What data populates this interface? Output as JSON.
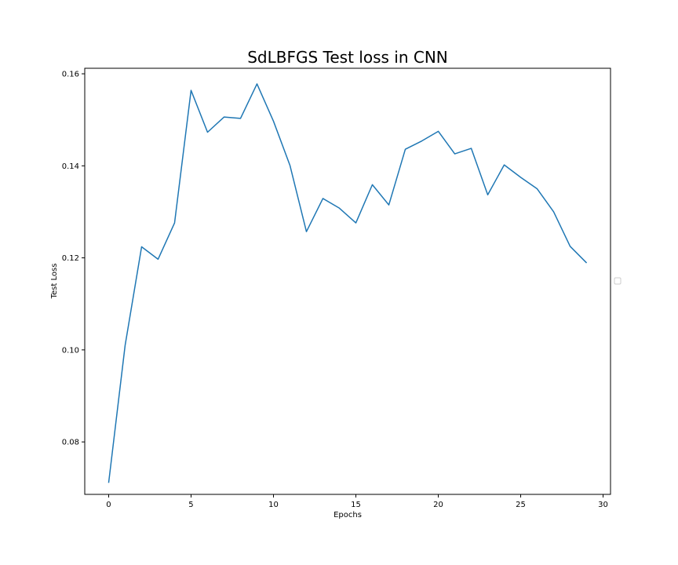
{
  "chart_data": {
    "type": "line",
    "title": "SdLBFGS Test loss in CNN",
    "xlabel": "Epochs",
    "ylabel": "Test Loss",
    "xlim": [
      -1.45,
      30.45
    ],
    "ylim": [
      0.0686,
      0.1612
    ],
    "xticks": [
      0,
      5,
      10,
      15,
      20,
      25,
      30
    ],
    "yticks": [
      0.08,
      0.1,
      0.12,
      0.14,
      0.16
    ],
    "xtick_labels": [
      "0",
      "5",
      "10",
      "15",
      "20",
      "25",
      "30"
    ],
    "ytick_labels": [
      "0.08",
      "0.10",
      "0.12",
      "0.14",
      "0.16"
    ],
    "grid": false,
    "legend": "empty box, center-right outside plot",
    "series": [
      {
        "color": "#1f77b4",
        "x": [
          0,
          1,
          2,
          3,
          4,
          5,
          6,
          7,
          8,
          9,
          10,
          11,
          12,
          13,
          14,
          15,
          16,
          17,
          18,
          19,
          20,
          21,
          22,
          23,
          24,
          25,
          26,
          27,
          28,
          29
        ],
        "y": [
          0.0711,
          0.101,
          0.1224,
          0.1197,
          0.1276,
          0.1564,
          0.1473,
          0.1506,
          0.1503,
          0.1578,
          0.1497,
          0.1401,
          0.1257,
          0.1329,
          0.1308,
          0.1276,
          0.1359,
          0.1315,
          0.1436,
          0.1454,
          0.1475,
          0.1426,
          0.1438,
          0.1337,
          0.1402,
          0.1375,
          0.135,
          0.13,
          0.1225,
          0.1189
        ]
      }
    ]
  }
}
